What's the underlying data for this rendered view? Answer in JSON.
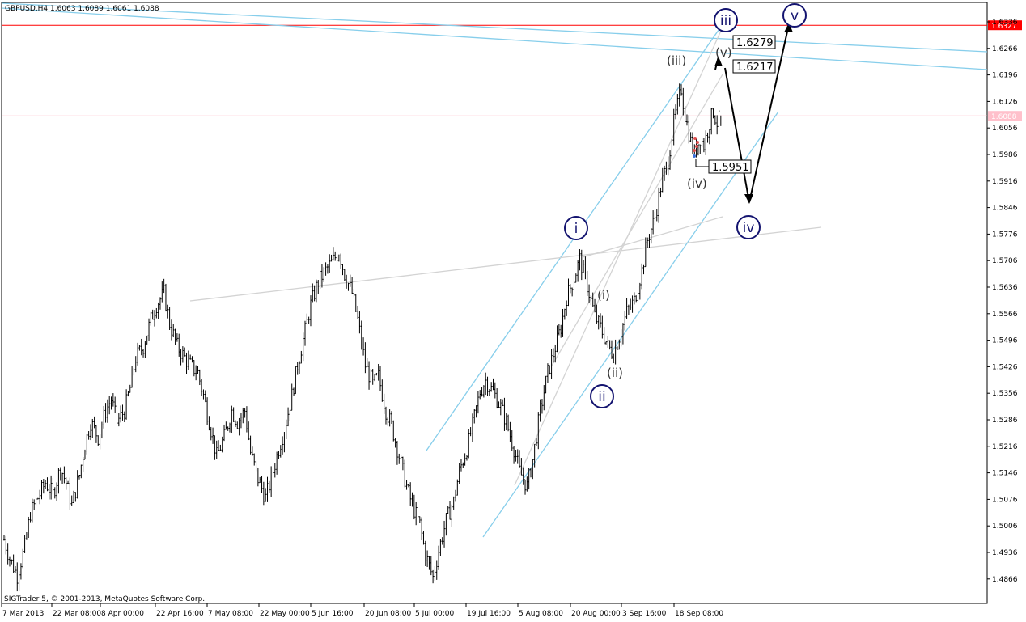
{
  "header": {
    "title": "GBPUSD,H4  1.6063 1.6089 1.6061 1.6088"
  },
  "footer": {
    "copyright": "SIGTrader 5, © 2001-2013, MetaQuotes Software Corp."
  },
  "colors": {
    "background": "#ffffff",
    "candles": "#000000",
    "channel": "#87ceeb",
    "trendline_gray": "#d3d3d3",
    "resistance_red": "#ff0000",
    "bid_line": "#ffc0cb",
    "wave_circle": "#141470",
    "projection": "#000000"
  },
  "chart_data": {
    "type": "candlestick",
    "symbol": "GBPUSD",
    "timeframe": "H4",
    "last_bar": {
      "open": 1.6063,
      "high": 1.6089,
      "low": 1.6061,
      "close": 1.6088
    },
    "x_tick_labels": [
      "7 Mar 2013",
      "22 Mar 08:00",
      "8 Apr 00:00",
      "22 Apr 16:00",
      "7 May 08:00",
      "22 May 00:00",
      "5 Jun 16:00",
      "20 Jun 08:00",
      "5 Jul 00:00",
      "19 Jul 16:00",
      "5 Aug 08:00",
      "20 Aug 00:00",
      "3 Sep 16:00",
      "18 Sep 08:00"
    ],
    "y_tick_labels": [
      "1.6336",
      "1.6266",
      "1.6196",
      "1.6126",
      "1.6056",
      "1.5986",
      "1.5916",
      "1.5846",
      "1.5776",
      "1.5706",
      "1.5636",
      "1.5566",
      "1.5496",
      "1.5426",
      "1.5356",
      "1.5286",
      "1.5216",
      "1.5146",
      "1.5076",
      "1.5006",
      "1.4936",
      "1.4866"
    ],
    "ylim": [
      1.4836,
      1.6366
    ],
    "price_path": [
      [
        0,
        1.497
      ],
      [
        3,
        1.492
      ],
      [
        7,
        1.4875
      ],
      [
        11,
        1.495
      ],
      [
        14,
        1.504
      ],
      [
        18,
        1.508
      ],
      [
        22,
        1.512
      ],
      [
        26,
        1.509
      ],
      [
        30,
        1.516
      ],
      [
        33,
        1.512
      ],
      [
        36,
        1.506
      ],
      [
        40,
        1.514
      ],
      [
        43,
        1.522
      ],
      [
        46,
        1.528
      ],
      [
        50,
        1.524
      ],
      [
        54,
        1.531
      ],
      [
        57,
        1.534
      ],
      [
        60,
        1.528
      ],
      [
        64,
        1.531
      ],
      [
        67,
        1.537
      ],
      [
        70,
        1.545
      ],
      [
        74,
        1.548
      ],
      [
        78,
        1.555
      ],
      [
        81,
        1.559
      ],
      [
        85,
        1.562
      ],
      [
        88,
        1.554
      ],
      [
        92,
        1.548
      ],
      [
        96,
        1.545
      ],
      [
        99,
        1.543
      ],
      [
        103,
        1.541
      ],
      [
        106,
        1.535
      ],
      [
        110,
        1.526
      ],
      [
        113,
        1.519
      ],
      [
        117,
        1.524
      ],
      [
        121,
        1.531
      ],
      [
        124,
        1.528
      ],
      [
        128,
        1.531
      ],
      [
        131,
        1.52
      ],
      [
        135,
        1.513
      ],
      [
        139,
        1.508
      ],
      [
        142,
        1.513
      ],
      [
        146,
        1.521
      ],
      [
        149,
        1.526
      ],
      [
        153,
        1.535
      ],
      [
        156,
        1.543
      ],
      [
        160,
        1.552
      ],
      [
        163,
        1.559
      ],
      [
        167,
        1.565
      ],
      [
        171,
        1.568
      ],
      [
        174,
        1.57
      ],
      [
        178,
        1.573
      ],
      [
        181,
        1.567
      ],
      [
        185,
        1.562
      ],
      [
        188,
        1.555
      ],
      [
        192,
        1.543
      ],
      [
        196,
        1.538
      ],
      [
        199,
        1.54
      ],
      [
        203,
        1.531
      ],
      [
        206,
        1.527
      ],
      [
        210,
        1.519
      ],
      [
        214,
        1.511
      ],
      [
        217,
        1.506
      ],
      [
        221,
        1.501
      ],
      [
        224,
        1.493
      ],
      [
        228,
        1.487
      ],
      [
        231,
        1.494
      ],
      [
        235,
        1.502
      ],
      [
        239,
        1.507
      ],
      [
        242,
        1.515
      ],
      [
        246,
        1.521
      ],
      [
        249,
        1.527
      ],
      [
        253,
        1.536
      ],
      [
        256,
        1.539
      ],
      [
        260,
        1.536
      ],
      [
        264,
        1.532
      ],
      [
        267,
        1.528
      ],
      [
        271,
        1.521
      ],
      [
        274,
        1.515
      ],
      [
        278,
        1.511
      ],
      [
        281,
        1.518
      ],
      [
        285,
        1.531
      ],
      [
        289,
        1.541
      ],
      [
        292,
        1.546
      ],
      [
        296,
        1.553
      ],
      [
        299,
        1.561
      ],
      [
        303,
        1.566
      ],
      [
        306,
        1.571
      ],
      [
        310,
        1.564
      ],
      [
        314,
        1.556
      ],
      [
        317,
        1.553
      ],
      [
        321,
        1.548
      ],
      [
        324,
        1.546
      ],
      [
        328,
        1.552
      ],
      [
        331,
        1.557
      ],
      [
        335,
        1.56
      ],
      [
        339,
        1.568
      ],
      [
        342,
        1.576
      ],
      [
        346,
        1.582
      ],
      [
        349,
        1.59
      ],
      [
        353,
        1.597
      ],
      [
        356,
        1.607
      ],
      [
        360,
        1.616
      ],
      [
        362,
        1.609
      ],
      [
        365,
        1.602
      ],
      [
        367,
        1.599
      ],
      [
        370,
        1.603
      ],
      [
        372,
        1.601
      ],
      [
        375,
        1.607
      ],
      [
        377,
        1.61
      ],
      [
        379,
        1.607
      ],
      [
        381,
        1.6088
      ]
    ],
    "levels": {
      "red_resistance": 1.6327,
      "bid": 1.6088
    },
    "annotations": {
      "level_boxes": [
        "1.6279",
        "1.6217",
        "1.5951"
      ],
      "wave_labels_circled": [
        "i",
        "ii",
        "iii",
        "iv",
        "v"
      ],
      "wave_labels_paren": [
        "(i)",
        "(ii)",
        "(iii)",
        "(iv)",
        "(v)"
      ],
      "price_tag_red": "1.6327",
      "price_tag_bid": "1.6088"
    },
    "grid": false,
    "legend": "none"
  }
}
